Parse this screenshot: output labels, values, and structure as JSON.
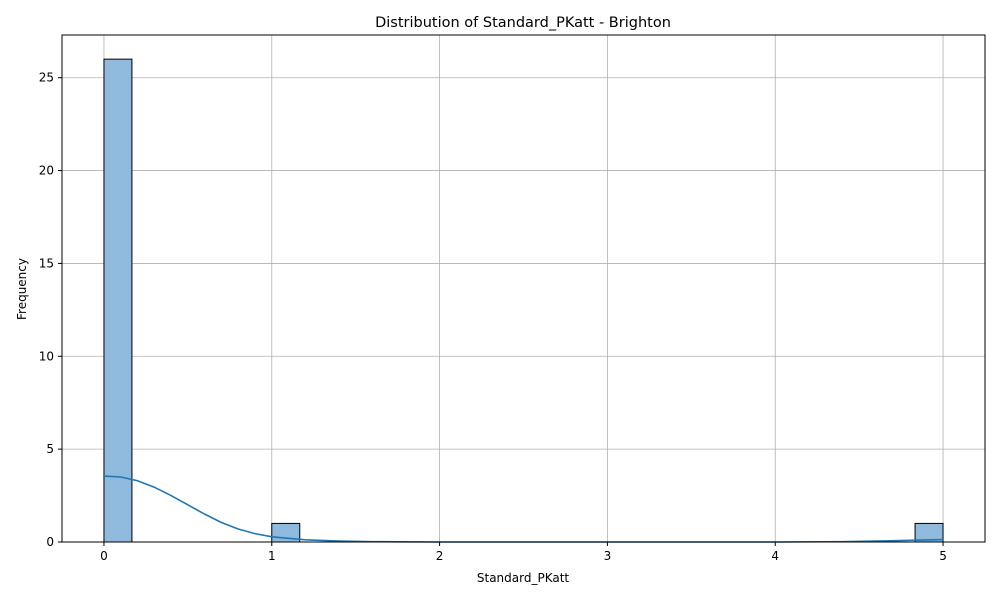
{
  "chart_data": {
    "type": "bar",
    "title": "Distribution of Standard_PKatt - Brighton",
    "xlabel": "Standard_PKatt",
    "ylabel": "Frequency",
    "xlim": [
      -0.25,
      5.25
    ],
    "ylim": [
      0,
      27.3
    ],
    "xticks": [
      0,
      1,
      2,
      3,
      4,
      5
    ],
    "yticks": [
      0,
      5,
      10,
      15,
      20,
      25
    ],
    "grid": true,
    "bin_width": 0.1667,
    "bins": [
      {
        "x0": 0.0,
        "x1": 0.1667,
        "count": 26
      },
      {
        "x0": 1.0,
        "x1": 1.1667,
        "count": 1
      },
      {
        "x0": 4.8333,
        "x1": 5.0,
        "count": 1
      }
    ],
    "kde": {
      "x": [
        0,
        0.1,
        0.2,
        0.3,
        0.4,
        0.5,
        0.6,
        0.7,
        0.8,
        0.9,
        1.0,
        1.2,
        1.4,
        1.6,
        2.0,
        3.0,
        4.0,
        4.4,
        4.6,
        4.8,
        5.0
      ],
      "y": [
        3.55,
        3.5,
        3.3,
        2.95,
        2.5,
        2.0,
        1.5,
        1.05,
        0.7,
        0.45,
        0.28,
        0.12,
        0.05,
        0.02,
        0.0,
        0.0,
        0.0,
        0.02,
        0.05,
        0.09,
        0.13
      ]
    },
    "colors": {
      "bar_fill": "#8fbadd",
      "bar_edge": "#000000",
      "kde_line": "#1f77b4",
      "grid": "#b0b0b0"
    }
  }
}
